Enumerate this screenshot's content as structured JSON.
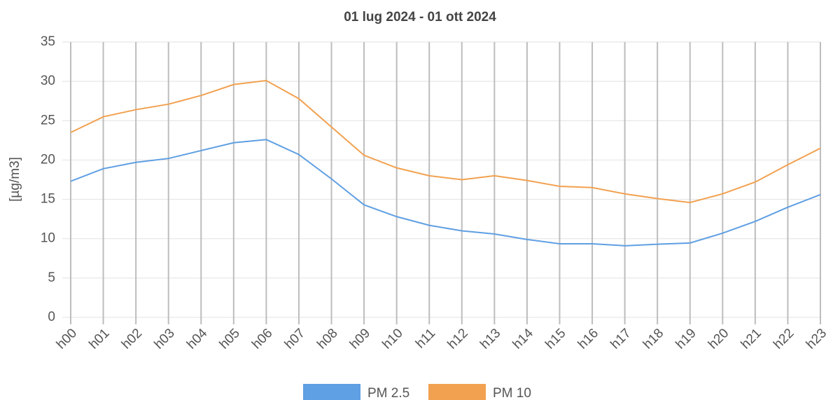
{
  "chart_data": {
    "type": "line",
    "title": "01 lug 2024 - 01 ott 2024",
    "y_label": "[µg/m3]",
    "categories": [
      "h00",
      "h01",
      "h02",
      "h03",
      "h04",
      "h05",
      "h06",
      "h07",
      "h08",
      "h09",
      "h10",
      "h11",
      "h12",
      "h13",
      "h14",
      "h15",
      "h16",
      "h17",
      "h18",
      "h19",
      "h20",
      "h21",
      "h22",
      "h23"
    ],
    "series": [
      {
        "name": "PM 2.5",
        "color": "#5f9fe3",
        "values": [
          17.3,
          18.9,
          19.7,
          20.2,
          21.2,
          22.2,
          22.6,
          20.7,
          17.6,
          14.3,
          12.8,
          11.7,
          11.0,
          10.6,
          9.9,
          9.35,
          9.35,
          9.1,
          9.3,
          9.45,
          10.7,
          12.2,
          14.0,
          15.6
        ]
      },
      {
        "name": "PM 10",
        "color": "#f2a150",
        "values": [
          23.5,
          25.5,
          26.4,
          27.1,
          28.2,
          29.6,
          30.1,
          27.8,
          24.2,
          20.6,
          19.0,
          18.0,
          17.5,
          18.0,
          17.4,
          16.65,
          16.5,
          15.7,
          15.1,
          14.6,
          15.7,
          17.2,
          19.4,
          21.5
        ]
      }
    ],
    "ylim": [
      0,
      35
    ],
    "yticks": [
      0,
      5,
      10,
      15,
      20,
      25,
      30,
      35
    ],
    "grid": true,
    "legend": "bottom"
  }
}
